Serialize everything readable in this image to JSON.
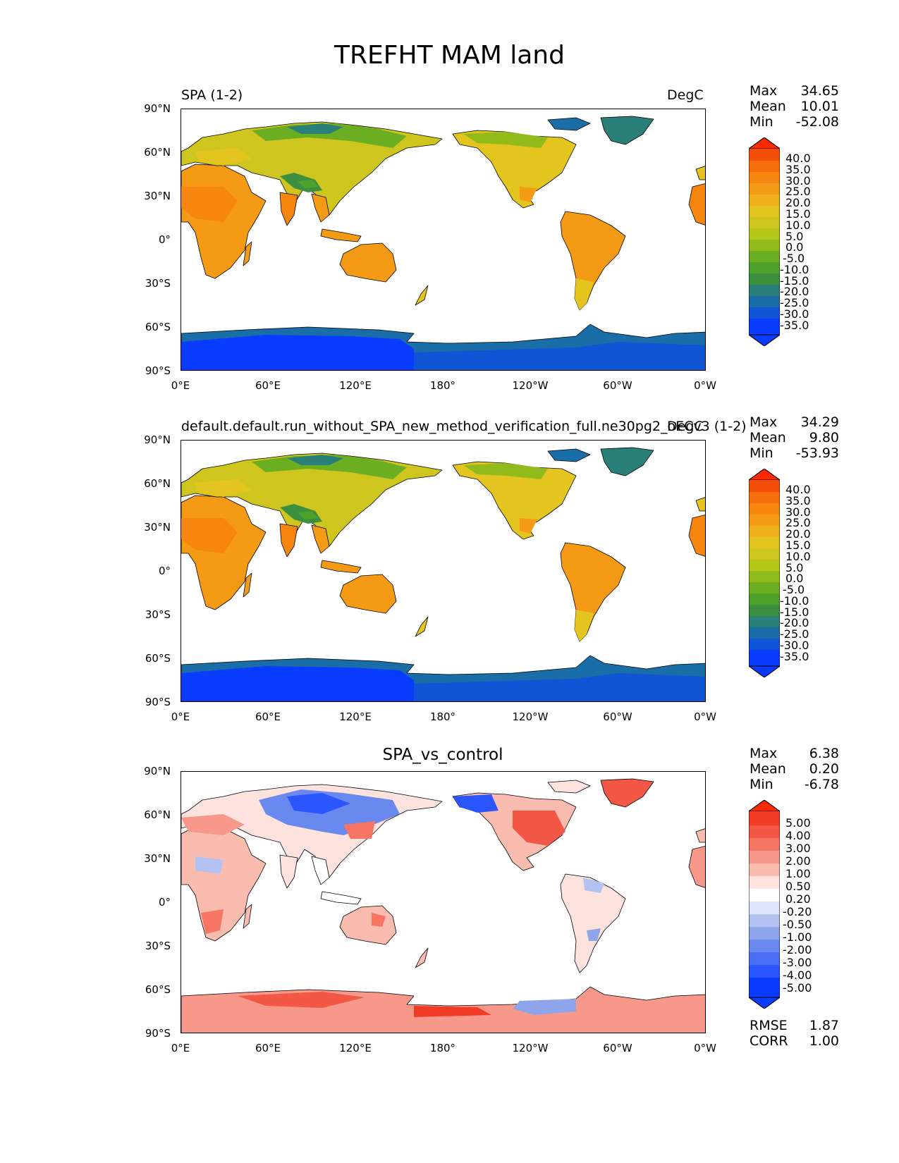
{
  "figure": {
    "title": "TREFHT MAM land"
  },
  "colors": {
    "temp_cmap": [
      "#0a3cff",
      "#1055d6",
      "#1a6ea8",
      "#2a7f78",
      "#3b8f3e",
      "#4ea22c",
      "#6cae22",
      "#91bb1a",
      "#b5c719",
      "#cec61e",
      "#e4c41f",
      "#f0b01c",
      "#f59a15",
      "#f7860f",
      "#f66e0b",
      "#f24e07",
      "#ff2a00"
    ],
    "diff_cmap": [
      "#0a3cff",
      "#2a55ff",
      "#4a6ef5",
      "#6a89ee",
      "#8ea5ec",
      "#b4c2f2",
      "#dde3fb",
      "#ffffff",
      "#fde2dd",
      "#fbbcb0",
      "#f8988a",
      "#f67564",
      "#f35846",
      "#f23b25",
      "#ff2a00"
    ],
    "coast": "#000000",
    "ocean": "#ffffff"
  },
  "axes": {
    "yticks": [
      "90°N",
      "60°N",
      "30°N",
      "0°",
      "30°S",
      "60°S",
      "90°S"
    ],
    "xticks": [
      "0°E",
      "60°E",
      "120°E",
      "180°",
      "120°W",
      "60°W",
      "0°W"
    ]
  },
  "panels": [
    {
      "id": "test",
      "left_title": "SPA (1-2)",
      "right_title": "DegC",
      "center_title": "",
      "field": "temp",
      "stats": [
        {
          "k": "Max",
          "v": "34.65"
        },
        {
          "k": "Mean",
          "v": "10.01"
        },
        {
          "k": "Min",
          "v": "-52.08"
        }
      ],
      "colorbar": {
        "labels": [
          "40.0",
          "35.0",
          "30.0",
          "25.0",
          "20.0",
          "15.0",
          "10.0",
          "5.0",
          "0.0",
          "-5.0",
          "-10.0",
          "-15.0",
          "-20.0",
          "-25.0",
          "-30.0",
          "-35.0"
        ]
      }
    },
    {
      "id": "reference",
      "left_title": "default.default.run_without_SPA_new_method_verification_full.ne30pg2_oECv3 (1-2)",
      "right_title": "DegC",
      "center_title": "",
      "field": "temp",
      "stats": [
        {
          "k": "Max",
          "v": "34.29"
        },
        {
          "k": "Mean",
          "v": "9.80"
        },
        {
          "k": "Min",
          "v": "-53.93"
        }
      ],
      "colorbar": {
        "labels": [
          "40.0",
          "35.0",
          "30.0",
          "25.0",
          "20.0",
          "15.0",
          "10.0",
          "5.0",
          "0.0",
          "-5.0",
          "-10.0",
          "-15.0",
          "-20.0",
          "-25.0",
          "-30.0",
          "-35.0"
        ]
      }
    },
    {
      "id": "diff",
      "left_title": "",
      "right_title": "",
      "center_title": "SPA_vs_control",
      "field": "diff",
      "stats": [
        {
          "k": "Max",
          "v": "6.38"
        },
        {
          "k": "Mean",
          "v": "0.20"
        },
        {
          "k": "Min",
          "v": "-6.78"
        }
      ],
      "colorbar": {
        "labels": [
          "5.00",
          "4.00",
          "3.00",
          "2.00",
          "1.00",
          "0.50",
          "0.20",
          "-0.20",
          "-0.50",
          "-1.00",
          "-2.00",
          "-3.00",
          "-4.00",
          "-5.00"
        ]
      },
      "metrics": [
        {
          "k": "RMSE",
          "v": "1.87"
        },
        {
          "k": "CORR",
          "v": "1.00"
        }
      ]
    }
  ]
}
